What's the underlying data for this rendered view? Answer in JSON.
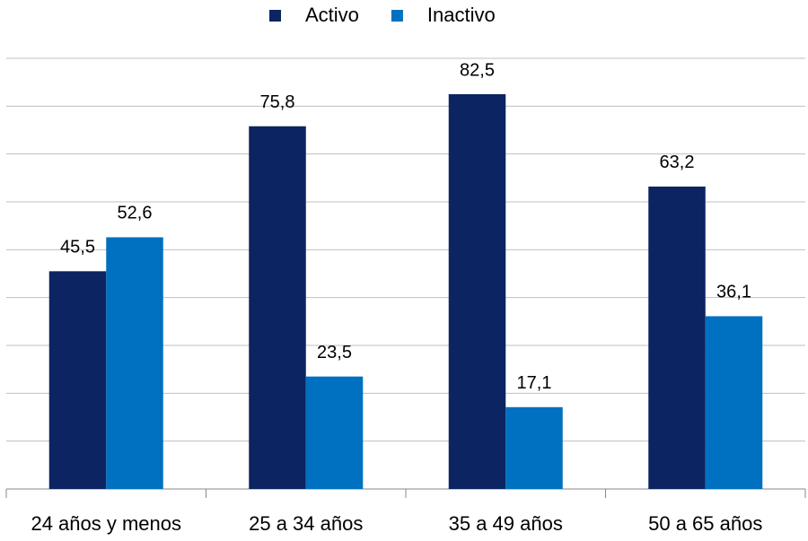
{
  "chart_data": {
    "type": "bar",
    "categories": [
      "24 años y menos",
      "25 a 34 años",
      "35 a 49 años",
      "50 a 65 años"
    ],
    "series": [
      {
        "name": "Activo",
        "color": "#0c2461",
        "values": [
          45.5,
          75.8,
          82.5,
          63.2
        ],
        "value_labels": [
          "45,5",
          "75,8",
          "82,5",
          "63,2"
        ]
      },
      {
        "name": "Inactivo",
        "color": "#0070c0",
        "values": [
          52.6,
          23.5,
          17.1,
          36.1
        ],
        "value_labels": [
          "52,6",
          "23,5",
          "17,1",
          "36,1"
        ]
      }
    ],
    "ylim": [
      0,
      90
    ],
    "yticks": [
      0,
      10,
      20,
      30,
      40,
      50,
      60,
      70,
      80,
      90
    ],
    "grid": true,
    "legend": "top"
  }
}
